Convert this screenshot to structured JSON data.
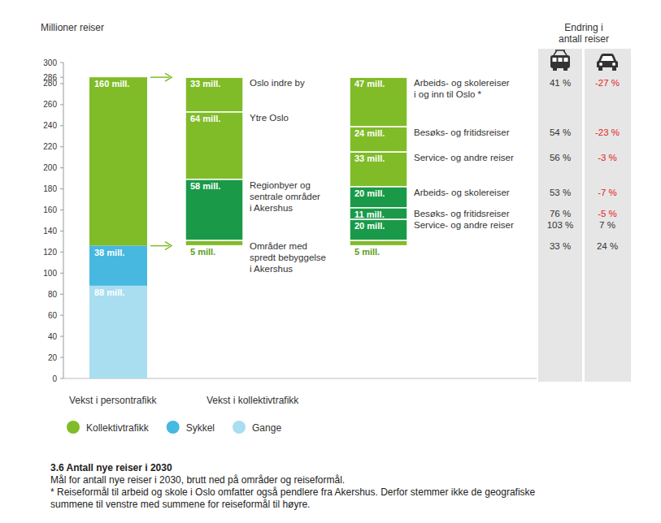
{
  "chart_data": {
    "type": "bar",
    "stacked": true,
    "data_labels": true,
    "grid": false,
    "legend": "bottom",
    "title": "3.6 Antall nye reiser i 2030",
    "subtitle": "Mål for antall nye reiser i 2030, brutt ned på områder og reiseformål.",
    "note": "* Reiseformål til arbeid og skole i Oslo omfatter også pendlere fra Akershus. Derfor stemmer ikke de geografiske\nsummene til venstre med summene for reiseformål til høyre.",
    "ylabel": "Millioner reiser",
    "ylim": [
      0,
      300
    ],
    "yticks": [
      0,
      20,
      40,
      60,
      80,
      100,
      120,
      140,
      160,
      180,
      200,
      220,
      240,
      260,
      280,
      286,
      300
    ],
    "change_title": "Endring i\nantall reiser",
    "bars": [
      {
        "category": "Vekst i persontrafikk",
        "segments": [
          {
            "name": "Kollektivtrafikk",
            "value": 160,
            "value_label": "160 mill.",
            "color": "#80bc28"
          },
          {
            "name": "Sykkel",
            "value": 38,
            "value_label": "38 mill.",
            "color": "#47b8e0"
          },
          {
            "name": "Gange",
            "value": 88,
            "value_label": "88 mill.",
            "color": "#a9ddf0"
          }
        ]
      },
      {
        "category": "Vekst i kollektivtrafikk",
        "segments": [
          {
            "name": "Oslo indre by",
            "value": 33,
            "value_label": "33 mill.",
            "color": "#80bc28"
          },
          {
            "name": "Ytre Oslo",
            "value": 64,
            "value_label": "64 mill.",
            "color": "#80bc28"
          },
          {
            "name": "Regionbyer og\nsentrale områder\ni Akershus",
            "value": 58,
            "value_label": "58 mill.",
            "color": "#1a9a48"
          },
          {
            "name": "Områder med\nspredt bebyggelse\ni Akershus",
            "value": 5,
            "value_label": "5 mill.",
            "color": "#80bc28"
          }
        ]
      },
      {
        "category": null,
        "segments": [
          {
            "name": "Arbeids- og skolereiser\ni og inn til Oslo *",
            "value": 47,
            "value_label": "47 mill.",
            "color": "#80bc28",
            "changes": [
              41,
              -27
            ],
            "change_labels": [
              "41 %",
              "-27 %"
            ]
          },
          {
            "name": "Besøks- og fritidsreiser",
            "value": 24,
            "value_label": "24 mill.",
            "color": "#80bc28",
            "changes": [
              54,
              -23
            ],
            "change_labels": [
              "54 %",
              "-23 %"
            ]
          },
          {
            "name": "Service- og andre reiser",
            "value": 33,
            "value_label": "33 mill.",
            "color": "#80bc28",
            "changes": [
              56,
              -3
            ],
            "change_labels": [
              "56 %",
              "-3 %"
            ]
          },
          {
            "name": "Arbeids- og skolereiser",
            "value": 20,
            "value_label": "20 mill.",
            "color": "#1a9a48",
            "changes": [
              53,
              -7
            ],
            "change_labels": [
              "53 %",
              "-7 %"
            ]
          },
          {
            "name": "Besøks- og fritidsreiser",
            "value": 11,
            "value_label": "11 mill.",
            "color": "#1a9a48",
            "changes": [
              76,
              -5
            ],
            "change_labels": [
              "76 %",
              "-5 %"
            ]
          },
          {
            "name": "Service- og andre reiser",
            "value": 20,
            "value_label": "20 mill.",
            "color": "#1a9a48",
            "changes": [
              103,
              7
            ],
            "change_labels": [
              "103 %",
              "7 %"
            ]
          },
          {
            "name": null,
            "value": 5,
            "value_label": "5 mill.",
            "color": "#80bc28",
            "changes": [
              33,
              24
            ],
            "change_labels": [
              "33 %",
              "24 %"
            ]
          }
        ]
      }
    ]
  }
}
